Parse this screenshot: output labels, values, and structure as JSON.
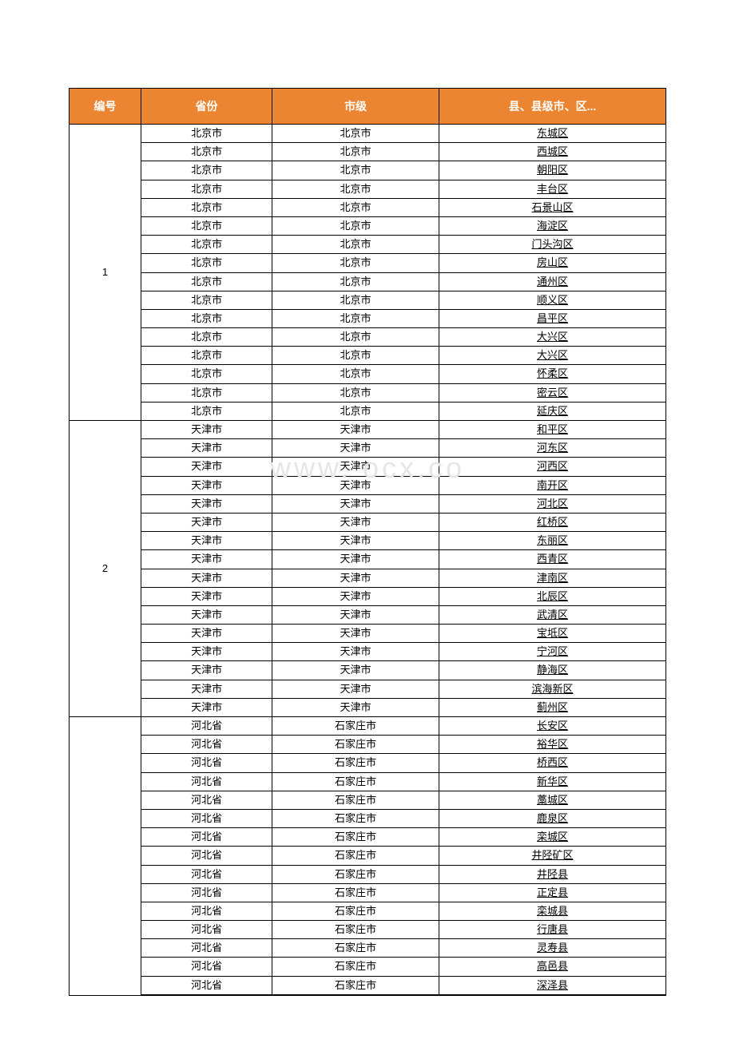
{
  "watermark": "www.    ocx.co",
  "header": {
    "bg_color": "#ec8532",
    "text_color": "#ffffff",
    "cols": [
      "编号",
      "省份",
      "市级",
      "县、县级市、区..."
    ]
  },
  "groups": [
    {
      "num": "1",
      "rows": [
        [
          "北京市",
          "北京市",
          "东城区"
        ],
        [
          "北京市",
          "北京市",
          "西城区"
        ],
        [
          "北京市",
          "北京市",
          "朝阳区"
        ],
        [
          "北京市",
          "北京市",
          "丰台区"
        ],
        [
          "北京市",
          "北京市",
          "石景山区"
        ],
        [
          "北京市",
          "北京市",
          "海淀区"
        ],
        [
          "北京市",
          "北京市",
          "门头沟区"
        ],
        [
          "北京市",
          "北京市",
          "房山区"
        ],
        [
          "北京市",
          "北京市",
          "通州区"
        ],
        [
          "北京市",
          "北京市",
          "顺义区"
        ],
        [
          "北京市",
          "北京市",
          "昌平区"
        ],
        [
          "北京市",
          "北京市",
          "大兴区"
        ],
        [
          "北京市",
          "北京市",
          "大兴区"
        ],
        [
          "北京市",
          "北京市",
          "怀柔区"
        ],
        [
          "北京市",
          "北京市",
          "密云区"
        ],
        [
          "北京市",
          "北京市",
          "延庆区"
        ]
      ]
    },
    {
      "num": "2",
      "rows": [
        [
          "天津市",
          "天津市",
          "和平区"
        ],
        [
          "天津市",
          "天津市",
          "河东区"
        ],
        [
          "天津市",
          "天津市",
          "河西区"
        ],
        [
          "天津市",
          "天津市",
          "南开区"
        ],
        [
          "天津市",
          "天津市",
          "河北区"
        ],
        [
          "天津市",
          "天津市",
          "红桥区"
        ],
        [
          "天津市",
          "天津市",
          "东丽区"
        ],
        [
          "天津市",
          "天津市",
          "西青区"
        ],
        [
          "天津市",
          "天津市",
          "津南区"
        ],
        [
          "天津市",
          "天津市",
          "北辰区"
        ],
        [
          "天津市",
          "天津市",
          "武清区"
        ],
        [
          "天津市",
          "天津市",
          "宝坻区"
        ],
        [
          "天津市",
          "天津市",
          "宁河区"
        ],
        [
          "天津市",
          "天津市",
          "静海区"
        ],
        [
          "天津市",
          "天津市",
          "滨海新区"
        ],
        [
          "天津市",
          "天津市",
          "蓟州区"
        ]
      ]
    },
    {
      "num": "",
      "rows": [
        [
          "河北省",
          "石家庄市",
          "长安区"
        ],
        [
          "河北省",
          "石家庄市",
          "裕华区"
        ],
        [
          "河北省",
          "石家庄市",
          "桥西区"
        ],
        [
          "河北省",
          "石家庄市",
          "新华区"
        ],
        [
          "河北省",
          "石家庄市",
          "藁城区"
        ],
        [
          "河北省",
          "石家庄市",
          "鹿泉区"
        ],
        [
          "河北省",
          "石家庄市",
          "栾城区"
        ],
        [
          "河北省",
          "石家庄市",
          "井陉矿区"
        ],
        [
          "河北省",
          "石家庄市",
          "井陉县"
        ],
        [
          "河北省",
          "石家庄市",
          "正定县"
        ],
        [
          "河北省",
          "石家庄市",
          "栾城县"
        ],
        [
          "河北省",
          "石家庄市",
          "行唐县"
        ],
        [
          "河北省",
          "石家庄市",
          "灵寿县"
        ],
        [
          "河北省",
          "石家庄市",
          "高邑县"
        ],
        [
          "河北省",
          "石家庄市",
          "深泽县"
        ]
      ]
    }
  ]
}
